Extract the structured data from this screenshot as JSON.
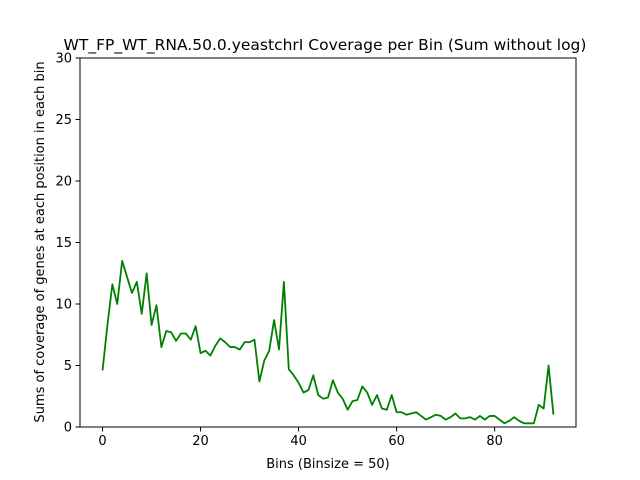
{
  "chart_data": {
    "type": "line",
    "title": "WT_FP_WT_RNA.50.0.yeastchrI Coverage per Bin (Sum without log)",
    "xlabel": "Bins (Binsize = 50)",
    "ylabel": "Sums of coverage of genes at each position in each bin",
    "xlim": [
      -4.6,
      96.6
    ],
    "ylim": [
      0,
      30
    ],
    "xticks": [
      0,
      20,
      40,
      60,
      80
    ],
    "yticks": [
      0,
      5,
      10,
      15,
      20,
      25,
      30
    ],
    "grid": false,
    "line_color": "#008000",
    "series": [
      {
        "name": "",
        "x": [
          0,
          1,
          2,
          3,
          4,
          5,
          6,
          7,
          8,
          9,
          10,
          11,
          12,
          13,
          14,
          15,
          16,
          17,
          18,
          19,
          20,
          21,
          22,
          23,
          24,
          25,
          26,
          27,
          28,
          29,
          30,
          31,
          32,
          33,
          34,
          35,
          36,
          37,
          38,
          39,
          40,
          41,
          42,
          43,
          44,
          45,
          46,
          47,
          48,
          49,
          50,
          51,
          52,
          53,
          54,
          55,
          56,
          57,
          58,
          59,
          60,
          61,
          62,
          63,
          64,
          65,
          66,
          67,
          68,
          69,
          70,
          71,
          72,
          73,
          74,
          75,
          76,
          77,
          78,
          79,
          80,
          81,
          82,
          83,
          84,
          85,
          86,
          87,
          88,
          89,
          90,
          91,
          92
        ],
        "y": [
          4.6,
          8.3,
          11.6,
          10.0,
          13.5,
          12.2,
          10.9,
          11.8,
          9.2,
          12.5,
          8.3,
          9.9,
          6.5,
          7.8,
          7.7,
          7.0,
          7.6,
          7.6,
          7.1,
          8.2,
          6.0,
          6.2,
          5.8,
          6.6,
          7.2,
          6.9,
          6.5,
          6.5,
          6.3,
          6.9,
          6.9,
          7.1,
          3.7,
          5.4,
          6.2,
          8.7,
          6.3,
          11.8,
          4.7,
          4.2,
          3.6,
          2.8,
          3.0,
          4.2,
          2.6,
          2.3,
          2.4,
          3.8,
          2.8,
          2.3,
          1.4,
          2.1,
          2.2,
          3.3,
          2.8,
          1.8,
          2.6,
          1.5,
          1.4,
          2.6,
          1.2,
          1.2,
          1.0,
          1.1,
          1.2,
          0.9,
          0.6,
          0.8,
          1.0,
          0.9,
          0.6,
          0.8,
          1.1,
          0.7,
          0.7,
          0.8,
          0.6,
          0.9,
          0.6,
          0.9,
          0.9,
          0.6,
          0.3,
          0.5,
          0.8,
          0.5,
          0.3,
          0.3,
          0.3,
          1.8,
          1.5,
          5.0,
          1.0
        ]
      }
    ]
  }
}
